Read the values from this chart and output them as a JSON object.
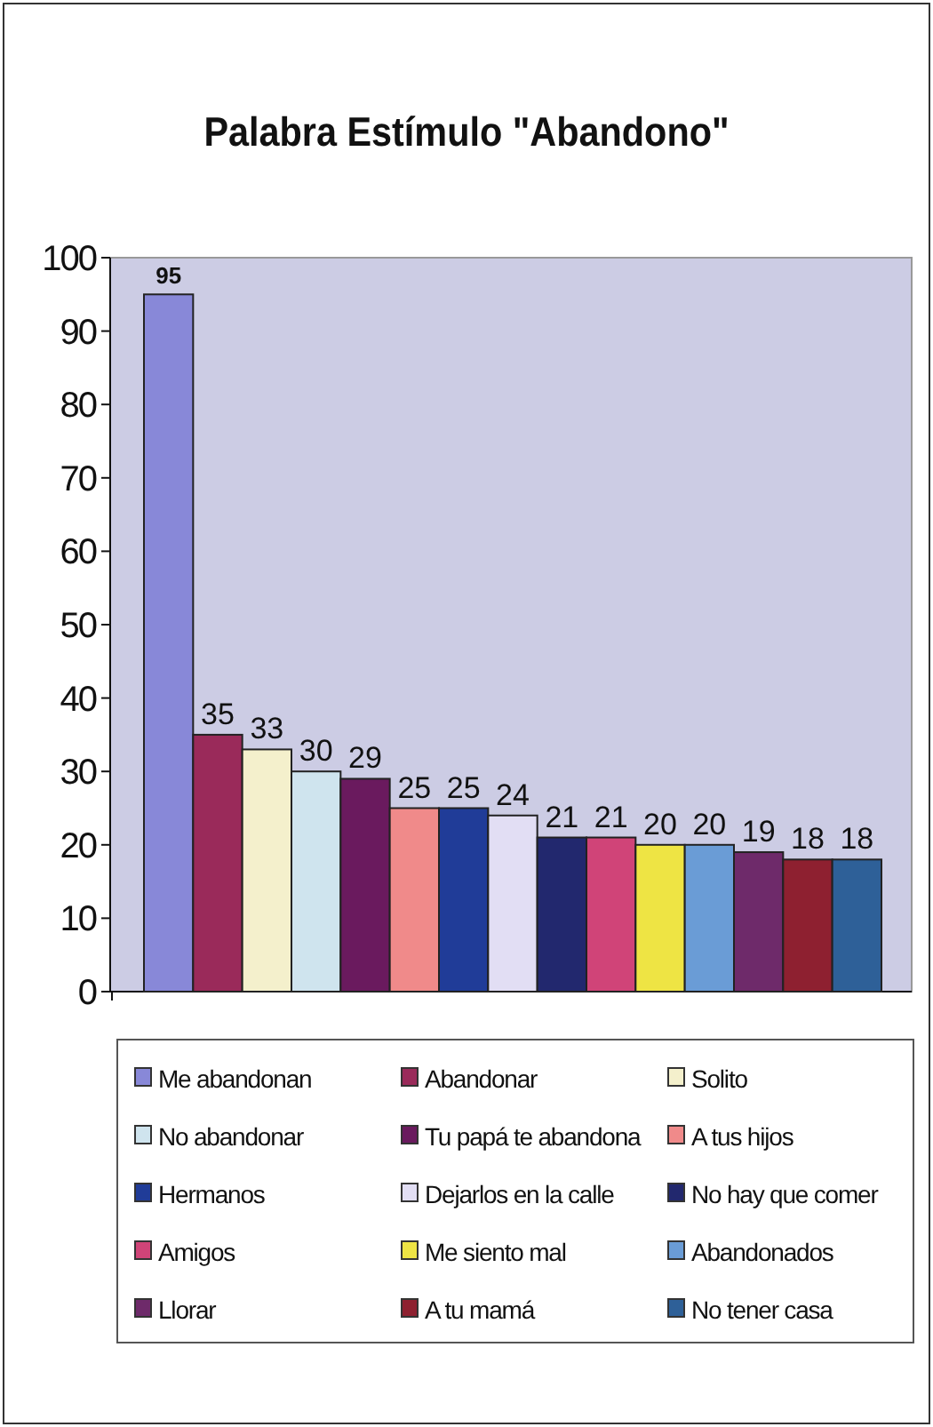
{
  "chart_data": {
    "type": "bar",
    "title": "Palabra Estímulo \"Abandono\"",
    "categories": [
      null
    ],
    "ylim": [
      0,
      100
    ],
    "yticks": [
      0,
      10,
      20,
      30,
      40,
      50,
      60,
      70,
      80,
      90,
      100
    ],
    "grid": false,
    "legend": "bottom",
    "data_labels": true,
    "series": [
      {
        "name": "Me abandonan",
        "color": "#8888d8",
        "values": [
          95
        ]
      },
      {
        "name": "Abandonar",
        "color": "#9a2a5a",
        "values": [
          35
        ]
      },
      {
        "name": "Solito",
        "color": "#f4f0cc",
        "values": [
          33
        ]
      },
      {
        "name": "No abandonar",
        "color": "#cfe4ee",
        "values": [
          30
        ]
      },
      {
        "name": "Tu papá te abandona",
        "color": "#6a1a5e",
        "values": [
          29
        ]
      },
      {
        "name": "A tus hijos",
        "color": "#f08a8a",
        "values": [
          25
        ]
      },
      {
        "name": "Hermanos",
        "color": "#203c98",
        "values": [
          25
        ]
      },
      {
        "name": "Dejarlos en la calle",
        "color": "#e2def4",
        "values": [
          24
        ]
      },
      {
        "name": "No hay que comer",
        "color": "#22286e",
        "values": [
          21
        ]
      },
      {
        "name": "Amigos",
        "color": "#d04478",
        "values": [
          21
        ]
      },
      {
        "name": "Me siento mal",
        "color": "#eee444",
        "values": [
          20
        ]
      },
      {
        "name": "Abandonados",
        "color": "#6a9cd6",
        "values": [
          20
        ]
      },
      {
        "name": "Llorar",
        "color": "#6e2a6a",
        "values": [
          19
        ]
      },
      {
        "name": "A tu mamá",
        "color": "#8e2030",
        "values": [
          18
        ]
      },
      {
        "name": "No tener casa",
        "color": "#2e6098",
        "values": [
          18
        ]
      }
    ]
  }
}
